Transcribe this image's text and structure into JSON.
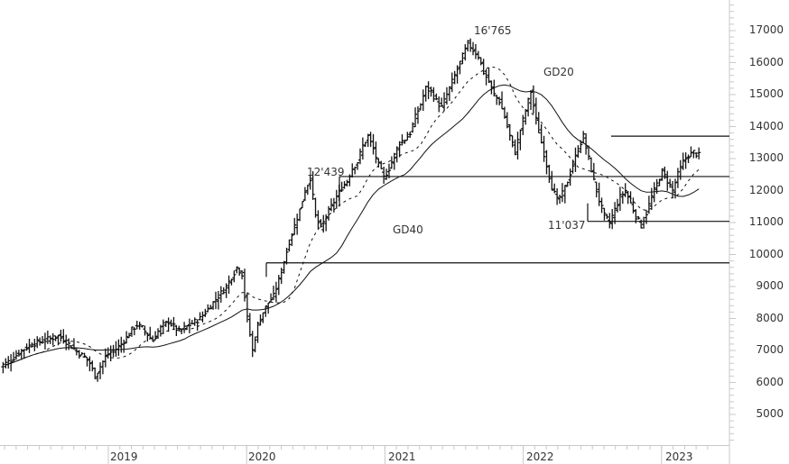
{
  "chart_data": {
    "type": "bar",
    "subtype": "ohlc",
    "title": "",
    "xlabel": "",
    "ylabel": "",
    "ylim": [
      4000,
      18000
    ],
    "grid": false,
    "x_ticks": [
      "2019",
      "2020",
      "2021",
      "2022",
      "2023"
    ],
    "y_ticks": [
      17000,
      16000,
      15000,
      14000,
      13000,
      12000,
      11000,
      10000,
      9000,
      8000,
      7000,
      6000,
      5000
    ],
    "series": [
      {
        "name": "Price",
        "style": "ohlc-bars"
      },
      {
        "name": "GD20",
        "style": "dashed"
      },
      {
        "name": "GD40",
        "style": "solid"
      }
    ],
    "annotations": [
      {
        "text": "16'765",
        "value": 16765,
        "type": "high"
      },
      {
        "text": "12'439",
        "value": 12439,
        "type": "level"
      },
      {
        "text": "11'037",
        "value": 11037,
        "type": "low"
      },
      {
        "text": "GD20",
        "type": "series-label"
      },
      {
        "text": "GD40",
        "type": "series-label"
      }
    ],
    "horizontal_levels": [
      13700,
      12439,
      11037,
      9740
    ],
    "x_start": 2018.22,
    "x_end": 2023.27,
    "price_close": [
      6500,
      6600,
      6700,
      6850,
      7000,
      7100,
      7200,
      7250,
      7300,
      7350,
      7400,
      7450,
      7350,
      7200,
      7050,
      6900,
      6800,
      6600,
      6200,
      6500,
      6800,
      6950,
      7050,
      7200,
      7400,
      7650,
      7800,
      7700,
      7500,
      7300,
      7600,
      7800,
      7900,
      7750,
      7600,
      7700,
      7800,
      7900,
      8000,
      8200,
      8400,
      8600,
      8800,
      9000,
      9300,
      9600,
      9400,
      8000,
      7000,
      7800,
      8200,
      8500,
      8700,
      9200,
      9800,
      10400,
      10900,
      11400,
      12000,
      12400,
      11200,
      10800,
      11200,
      11500,
      11800,
      12100,
      12300,
      12700,
      12900,
      13400,
      13700,
      13300,
      12800,
      12400,
      12700,
      13100,
      13500,
      13600,
      13800,
      14300,
      14700,
      15200,
      15100,
      14800,
      14600,
      15000,
      15400,
      15800,
      16200,
      16600,
      16400,
      16200,
      15700,
      15400,
      15000,
      14800,
      14300,
      13700,
      13200,
      13900,
      14500,
      15100,
      14200,
      13500,
      12800,
      12100,
      11700,
      11900,
      12300,
      12800,
      13300,
      13700,
      13000,
      12300,
      11700,
      11200,
      11000,
      11400,
      11800,
      12000,
      11600,
      11200,
      10900,
      11300,
      11800,
      12200,
      12600,
      12300,
      12000,
      12500,
      12900,
      13100,
      13200,
      13100
    ]
  },
  "axes": {
    "y_labels": [
      "17000",
      "16000",
      "15000",
      "14000",
      "13000",
      "12000",
      "11000",
      "10000",
      "9000",
      "8000",
      "7000",
      "6000",
      "5000"
    ],
    "x_labels": [
      "2019",
      "2020",
      "2021",
      "2022",
      "2023"
    ]
  },
  "labels": {
    "high": "16'765",
    "level": "12'439",
    "low": "11'037",
    "gd20": "GD20",
    "gd40": "GD40"
  }
}
